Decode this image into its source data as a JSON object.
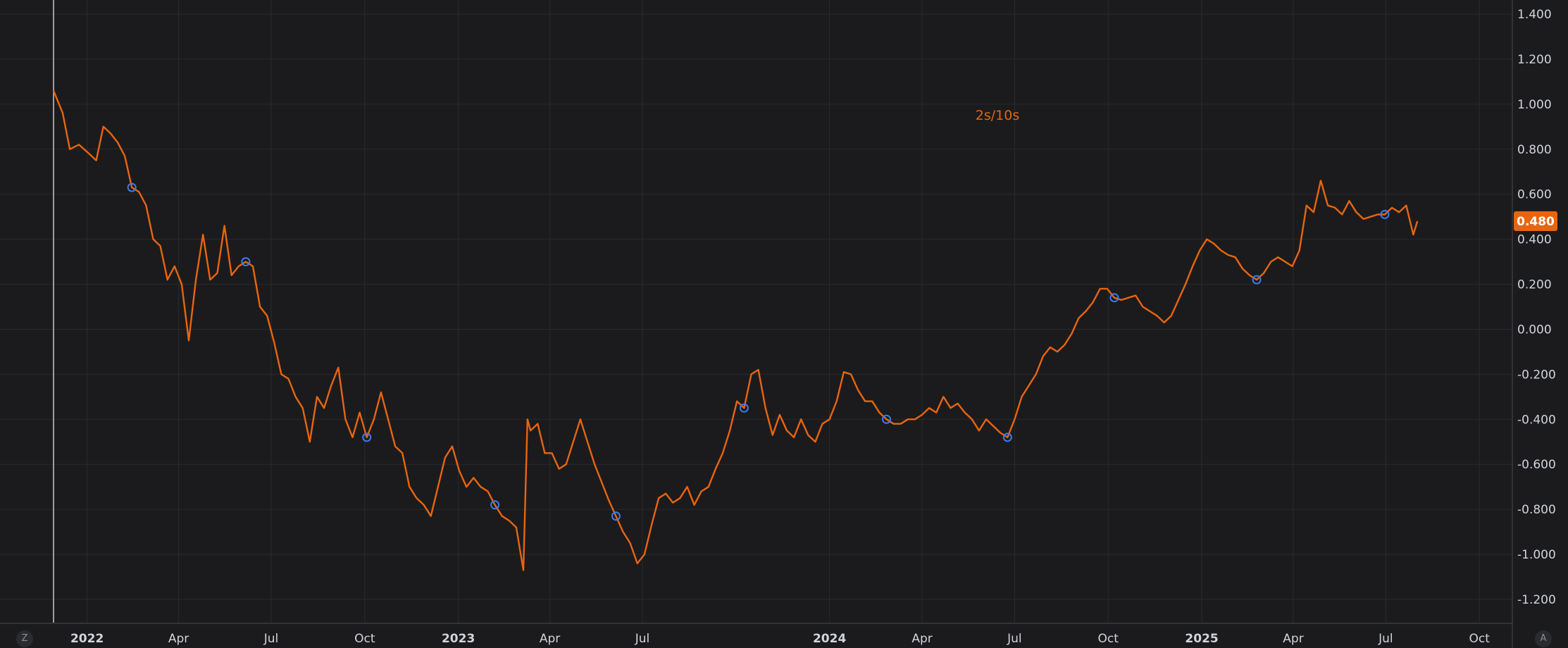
{
  "chart_data": {
    "type": "line",
    "series": [
      {
        "name": "2s/10s",
        "color": "#e8650f",
        "points": [
          [
            "2021-11-29",
            1.06
          ],
          [
            "2021-12-08",
            0.96
          ],
          [
            "2021-12-15",
            0.8
          ],
          [
            "2021-12-24",
            0.82
          ],
          [
            "2022-01-03",
            0.78
          ],
          [
            "2022-01-10",
            0.75
          ],
          [
            "2022-01-17",
            0.9
          ],
          [
            "2022-01-24",
            0.87
          ],
          [
            "2022-01-31",
            0.83
          ],
          [
            "2022-02-07",
            0.77
          ],
          [
            "2022-02-14",
            0.63
          ],
          [
            "2022-02-21",
            0.61
          ],
          [
            "2022-02-28",
            0.55
          ],
          [
            "2022-03-07",
            0.4
          ],
          [
            "2022-03-14",
            0.37
          ],
          [
            "2022-03-21",
            0.22
          ],
          [
            "2022-03-28",
            0.28
          ],
          [
            "2022-04-04",
            0.2
          ],
          [
            "2022-04-11",
            -0.05
          ],
          [
            "2022-04-18",
            0.22
          ],
          [
            "2022-04-25",
            0.42
          ],
          [
            "2022-05-02",
            0.22
          ],
          [
            "2022-05-09",
            0.25
          ],
          [
            "2022-05-16",
            0.46
          ],
          [
            "2022-05-23",
            0.24
          ],
          [
            "2022-05-30",
            0.28
          ],
          [
            "2022-06-06",
            0.3
          ],
          [
            "2022-06-13",
            0.28
          ],
          [
            "2022-06-20",
            0.1
          ],
          [
            "2022-06-27",
            0.06
          ],
          [
            "2022-07-04",
            -0.06
          ],
          [
            "2022-07-11",
            -0.2
          ],
          [
            "2022-07-18",
            -0.22
          ],
          [
            "2022-07-25",
            -0.3
          ],
          [
            "2022-08-01",
            -0.35
          ],
          [
            "2022-08-08",
            -0.5
          ],
          [
            "2022-08-15",
            -0.3
          ],
          [
            "2022-08-22",
            -0.35
          ],
          [
            "2022-08-29",
            -0.25
          ],
          [
            "2022-09-05",
            -0.17
          ],
          [
            "2022-09-12",
            -0.4
          ],
          [
            "2022-09-19",
            -0.48
          ],
          [
            "2022-09-26",
            -0.37
          ],
          [
            "2022-10-03",
            -0.48
          ],
          [
            "2022-10-10",
            -0.4
          ],
          [
            "2022-10-17",
            -0.28
          ],
          [
            "2022-10-24",
            -0.4
          ],
          [
            "2022-10-31",
            -0.52
          ],
          [
            "2022-11-07",
            -0.55
          ],
          [
            "2022-11-14",
            -0.7
          ],
          [
            "2022-11-21",
            -0.75
          ],
          [
            "2022-11-28",
            -0.78
          ],
          [
            "2022-12-05",
            -0.83
          ],
          [
            "2022-12-12",
            -0.7
          ],
          [
            "2022-12-19",
            -0.57
          ],
          [
            "2022-12-26",
            -0.52
          ],
          [
            "2023-01-02",
            -0.63
          ],
          [
            "2023-01-09",
            -0.7
          ],
          [
            "2023-01-16",
            -0.66
          ],
          [
            "2023-01-23",
            -0.7
          ],
          [
            "2023-01-30",
            -0.72
          ],
          [
            "2023-02-06",
            -0.78
          ],
          [
            "2023-02-13",
            -0.83
          ],
          [
            "2023-02-20",
            -0.85
          ],
          [
            "2023-02-27",
            -0.88
          ],
          [
            "2023-03-06",
            -1.07
          ],
          [
            "2023-03-10",
            -0.4
          ],
          [
            "2023-03-13",
            -0.45
          ],
          [
            "2023-03-20",
            -0.42
          ],
          [
            "2023-03-27",
            -0.55
          ],
          [
            "2023-04-03",
            -0.55
          ],
          [
            "2023-04-10",
            -0.62
          ],
          [
            "2023-04-17",
            -0.6
          ],
          [
            "2023-04-24",
            -0.5
          ],
          [
            "2023-05-01",
            -0.4
          ],
          [
            "2023-05-08",
            -0.5
          ],
          [
            "2023-05-15",
            -0.6
          ],
          [
            "2023-05-22",
            -0.68
          ],
          [
            "2023-05-29",
            -0.76
          ],
          [
            "2023-06-05",
            -0.83
          ],
          [
            "2023-06-12",
            -0.9
          ],
          [
            "2023-06-19",
            -0.95
          ],
          [
            "2023-06-26",
            -1.04
          ],
          [
            "2023-07-03",
            -1.0
          ],
          [
            "2023-07-10",
            -0.87
          ],
          [
            "2023-07-17",
            -0.75
          ],
          [
            "2023-07-24",
            -0.73
          ],
          [
            "2023-07-31",
            -0.77
          ],
          [
            "2023-08-07",
            -0.75
          ],
          [
            "2023-08-14",
            -0.7
          ],
          [
            "2023-08-21",
            -0.78
          ],
          [
            "2023-08-28",
            -0.72
          ],
          [
            "2023-09-04",
            -0.7
          ],
          [
            "2023-09-11",
            -0.62
          ],
          [
            "2023-09-18",
            -0.55
          ],
          [
            "2023-09-25",
            -0.45
          ],
          [
            "2023-10-02",
            -0.32
          ],
          [
            "2023-10-09",
            -0.35
          ],
          [
            "2023-10-16",
            -0.2
          ],
          [
            "2023-10-23",
            -0.18
          ],
          [
            "2023-10-30",
            -0.35
          ],
          [
            "2023-11-06",
            -0.47
          ],
          [
            "2023-11-13",
            -0.38
          ],
          [
            "2023-11-20",
            -0.45
          ],
          [
            "2023-11-27",
            -0.48
          ],
          [
            "2023-12-04",
            -0.4
          ],
          [
            "2023-12-11",
            -0.47
          ],
          [
            "2023-12-18",
            -0.5
          ],
          [
            "2023-12-25",
            -0.42
          ],
          [
            "2024-01-01",
            -0.4
          ],
          [
            "2024-01-08",
            -0.32
          ],
          [
            "2024-01-15",
            -0.19
          ],
          [
            "2024-01-22",
            -0.2
          ],
          [
            "2024-01-29",
            -0.27
          ],
          [
            "2024-02-05",
            -0.32
          ],
          [
            "2024-02-12",
            -0.32
          ],
          [
            "2024-02-19",
            -0.37
          ],
          [
            "2024-02-26",
            -0.4
          ],
          [
            "2024-03-04",
            -0.42
          ],
          [
            "2024-03-11",
            -0.42
          ],
          [
            "2024-03-18",
            -0.4
          ],
          [
            "2024-03-25",
            -0.4
          ],
          [
            "2024-04-01",
            -0.38
          ],
          [
            "2024-04-08",
            -0.35
          ],
          [
            "2024-04-15",
            -0.37
          ],
          [
            "2024-04-22",
            -0.3
          ],
          [
            "2024-04-29",
            -0.35
          ],
          [
            "2024-05-06",
            -0.33
          ],
          [
            "2024-05-13",
            -0.37
          ],
          [
            "2024-05-20",
            -0.4
          ],
          [
            "2024-05-27",
            -0.45
          ],
          [
            "2024-06-03",
            -0.4
          ],
          [
            "2024-06-10",
            -0.43
          ],
          [
            "2024-06-17",
            -0.46
          ],
          [
            "2024-06-24",
            -0.48
          ],
          [
            "2024-07-01",
            -0.4
          ],
          [
            "2024-07-08",
            -0.3
          ],
          [
            "2024-07-15",
            -0.25
          ],
          [
            "2024-07-22",
            -0.2
          ],
          [
            "2024-07-29",
            -0.12
          ],
          [
            "2024-08-05",
            -0.08
          ],
          [
            "2024-08-12",
            -0.1
          ],
          [
            "2024-08-19",
            -0.07
          ],
          [
            "2024-08-26",
            -0.02
          ],
          [
            "2024-09-02",
            0.05
          ],
          [
            "2024-09-09",
            0.08
          ],
          [
            "2024-09-16",
            0.12
          ],
          [
            "2024-09-23",
            0.18
          ],
          [
            "2024-09-30",
            0.18
          ],
          [
            "2024-10-07",
            0.14
          ],
          [
            "2024-10-14",
            0.13
          ],
          [
            "2024-10-21",
            0.14
          ],
          [
            "2024-10-28",
            0.15
          ],
          [
            "2024-11-04",
            0.1
          ],
          [
            "2024-11-11",
            0.08
          ],
          [
            "2024-11-18",
            0.06
          ],
          [
            "2024-11-25",
            0.03
          ],
          [
            "2024-12-02",
            0.06
          ],
          [
            "2024-12-09",
            0.13
          ],
          [
            "2024-12-16",
            0.2
          ],
          [
            "2024-12-23",
            0.28
          ],
          [
            "2024-12-30",
            0.35
          ],
          [
            "2025-01-06",
            0.4
          ],
          [
            "2025-01-13",
            0.38
          ],
          [
            "2025-01-20",
            0.35
          ],
          [
            "2025-01-27",
            0.33
          ],
          [
            "2025-02-03",
            0.32
          ],
          [
            "2025-02-10",
            0.27
          ],
          [
            "2025-02-17",
            0.24
          ],
          [
            "2025-02-24",
            0.22
          ],
          [
            "2025-03-03",
            0.25
          ],
          [
            "2025-03-10",
            0.3
          ],
          [
            "2025-03-17",
            0.32
          ],
          [
            "2025-03-24",
            0.3
          ],
          [
            "2025-03-31",
            0.28
          ],
          [
            "2025-04-07",
            0.35
          ],
          [
            "2025-04-14",
            0.55
          ],
          [
            "2025-04-21",
            0.52
          ],
          [
            "2025-04-28",
            0.66
          ],
          [
            "2025-05-05",
            0.55
          ],
          [
            "2025-05-12",
            0.54
          ],
          [
            "2025-05-19",
            0.51
          ],
          [
            "2025-05-26",
            0.57
          ],
          [
            "2025-06-02",
            0.52
          ],
          [
            "2025-06-09",
            0.49
          ],
          [
            "2025-06-16",
            0.5
          ],
          [
            "2025-06-23",
            0.51
          ],
          [
            "2025-06-30",
            0.51
          ],
          [
            "2025-07-07",
            0.54
          ],
          [
            "2025-07-14",
            0.52
          ],
          [
            "2025-07-21",
            0.55
          ],
          [
            "2025-07-28",
            0.42
          ],
          [
            "2025-08-01",
            0.48
          ]
        ]
      }
    ],
    "markers": [
      "2022-02-14",
      "2022-06-06",
      "2022-10-03",
      "2023-02-06",
      "2023-06-05",
      "2023-10-09",
      "2024-02-26",
      "2024-06-24",
      "2024-10-07",
      "2025-02-24",
      "2025-06-30"
    ],
    "series_label": "2s/10s",
    "last_value": 0.48,
    "last_value_label": "0.480",
    "ylim": [
      -1.3,
      1.45
    ],
    "xlim": [
      "2021-11-29",
      "2025-11-01"
    ],
    "yticks": [
      1.4,
      1.2,
      1.0,
      0.8,
      0.6,
      0.4,
      0.2,
      0.0,
      -0.2,
      -0.4,
      -0.6,
      -0.8,
      -1.0,
      -1.2
    ],
    "ytick_labels": [
      "1.400",
      "1.200",
      "1.000",
      "0.800",
      "0.600",
      "0.400",
      "0.200",
      "0.000",
      "-0.200",
      "-0.400",
      "-0.600",
      "-0.800",
      "-1.000",
      "-1.200"
    ],
    "xticks": [
      {
        "date": "2022-01-01",
        "label": "2022",
        "bold": true
      },
      {
        "date": "2022-04-01",
        "label": "Apr",
        "bold": false
      },
      {
        "date": "2022-07-01",
        "label": "Jul",
        "bold": false
      },
      {
        "date": "2022-10-01",
        "label": "Oct",
        "bold": false
      },
      {
        "date": "2023-01-01",
        "label": "2023",
        "bold": true
      },
      {
        "date": "2023-04-01",
        "label": "Apr",
        "bold": false
      },
      {
        "date": "2023-07-01",
        "label": "Jul",
        "bold": false
      },
      {
        "date": "2024-01-01",
        "label": "2024",
        "bold": true
      },
      {
        "date": "2024-04-01",
        "label": "Apr",
        "bold": false
      },
      {
        "date": "2024-07-01",
        "label": "Jul",
        "bold": false
      },
      {
        "date": "2024-10-01",
        "label": "Oct",
        "bold": false
      },
      {
        "date": "2025-01-01",
        "label": "2025",
        "bold": true
      },
      {
        "date": "2025-04-01",
        "label": "Apr",
        "bold": false
      },
      {
        "date": "2025-07-01",
        "label": "Jul",
        "bold": false
      },
      {
        "date": "2025-10-01",
        "label": "Oct",
        "bold": false
      }
    ],
    "grid": true,
    "axis_position": "right",
    "colors": {
      "background": "#1b1b1d",
      "grid": "#2a2b2e",
      "line": "#e8650f",
      "marker": "#3d7bf0",
      "text": "#d1d4dc"
    }
  },
  "corner_buttons": {
    "left": "Z",
    "right": "A"
  }
}
